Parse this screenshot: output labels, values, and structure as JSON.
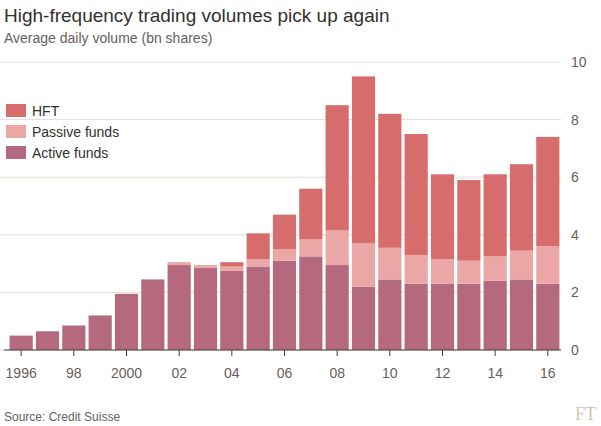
{
  "chart_data": {
    "type": "bar",
    "stacked": true,
    "grid": true,
    "legend": "top-left",
    "title": "High-frequency trading volumes pick up again",
    "subtitle": "Average daily volume (bn shares)",
    "source": "Source: Credit Suisse",
    "logo": "FT",
    "categories": [
      "1996",
      null,
      "98",
      null,
      "2000",
      null,
      "02",
      null,
      "04",
      null,
      "06",
      null,
      "08",
      null,
      "10",
      null,
      "12",
      null,
      "14",
      null,
      "16"
    ],
    "series": [
      {
        "name": "Active funds",
        "color": "#b4697f",
        "values": [
          0.5,
          0.65,
          0.85,
          1.2,
          1.95,
          2.45,
          2.95,
          2.85,
          2.75,
          2.9,
          3.1,
          3.25,
          2.95,
          2.2,
          2.45,
          2.3,
          2.3,
          2.3,
          2.4,
          2.45,
          2.3
        ]
      },
      {
        "name": "Passive funds",
        "color": "#eba6a6",
        "values": [
          0,
          0,
          0,
          0,
          0,
          0,
          0.1,
          0.1,
          0.15,
          0.25,
          0.4,
          0.6,
          1.2,
          1.5,
          1.1,
          1.0,
          0.85,
          0.8,
          0.85,
          1.0,
          1.3
        ]
      },
      {
        "name": "HFT",
        "color": "#d66c6c",
        "values": [
          0,
          0,
          0,
          0,
          0,
          0,
          0,
          0,
          0.15,
          0.9,
          1.2,
          1.75,
          4.35,
          5.8,
          4.65,
          4.2,
          2.95,
          2.8,
          2.85,
          3.0,
          3.8
        ]
      }
    ],
    "ylim": [
      0,
      10
    ],
    "yticks": [
      0,
      2,
      4,
      6,
      8,
      10
    ]
  }
}
